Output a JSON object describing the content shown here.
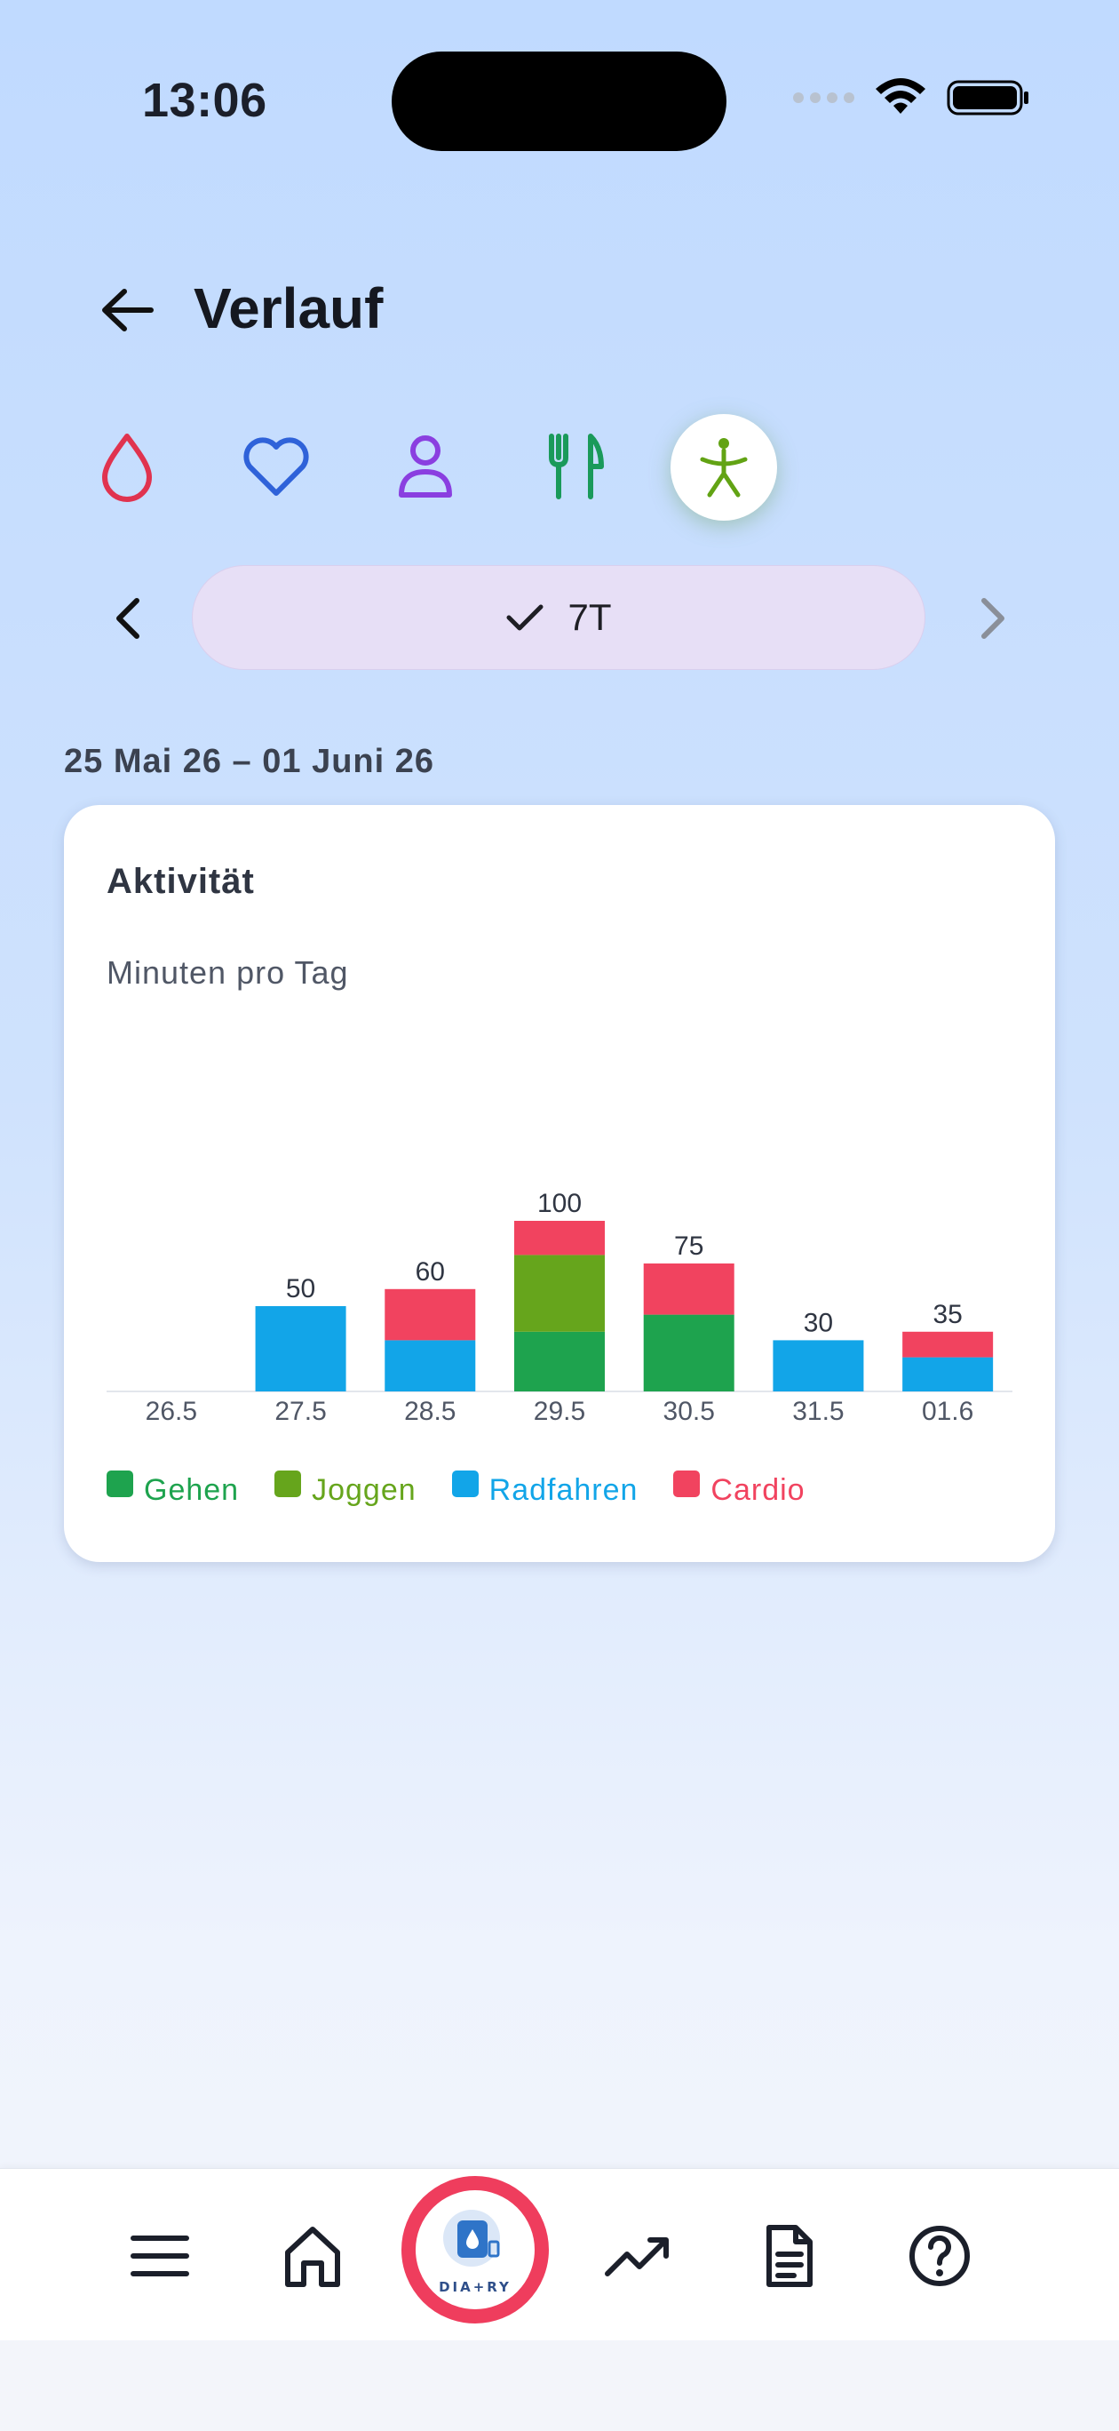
{
  "status_bar": {
    "time": "13:06"
  },
  "header": {
    "title": "Verlauf"
  },
  "categories": [
    {
      "id": "blood-glucose",
      "icon": "drop-icon",
      "color": "#e0334f"
    },
    {
      "id": "heart",
      "icon": "heart-icon",
      "color": "#2f62d9"
    },
    {
      "id": "profile",
      "icon": "person-icon",
      "color": "#8a3fe0"
    },
    {
      "id": "food",
      "icon": "fork-knife-icon",
      "color": "#1a9a5a"
    },
    {
      "id": "activity",
      "icon": "walking-figure-icon",
      "color": "#62a314",
      "active": true
    }
  ],
  "range": {
    "label": "7T",
    "selected": true
  },
  "date_range": "25 Mai 26 – 01 Juni 26",
  "card": {
    "title": "Aktivität",
    "subtitle": "Minuten pro Tag"
  },
  "chart_data": {
    "type": "bar",
    "stacked": true,
    "title": "Aktivität",
    "subtitle": "Minuten pro Tag",
    "categories": [
      "26.5",
      "27.5",
      "28.5",
      "29.5",
      "30.5",
      "31.5",
      "01.6"
    ],
    "totals": [
      null,
      50,
      60,
      100,
      75,
      30,
      35
    ],
    "series": [
      {
        "name": "Gehen",
        "color": "#1ea34e",
        "values": [
          0,
          0,
          0,
          35,
          45,
          0,
          0
        ]
      },
      {
        "name": "Joggen",
        "color": "#66a51c",
        "values": [
          0,
          0,
          0,
          45,
          0,
          0,
          0
        ]
      },
      {
        "name": "Radfahren",
        "color": "#12a5e8",
        "values": [
          0,
          50,
          30,
          0,
          0,
          30,
          20
        ]
      },
      {
        "name": "Cardio",
        "color": "#f1435f",
        "values": [
          0,
          0,
          30,
          20,
          30,
          0,
          15
        ]
      }
    ],
    "legend_position": "bottom-left",
    "grid": false
  },
  "bottom_nav": [
    {
      "id": "menu",
      "icon": "menu-icon"
    },
    {
      "id": "home",
      "icon": "home-icon"
    },
    {
      "id": "logo",
      "icon": "diary-logo-icon",
      "label": "DIA+RY"
    },
    {
      "id": "trends",
      "icon": "trend-up-icon"
    },
    {
      "id": "reports",
      "icon": "document-icon"
    },
    {
      "id": "help",
      "icon": "help-circle-icon"
    }
  ]
}
